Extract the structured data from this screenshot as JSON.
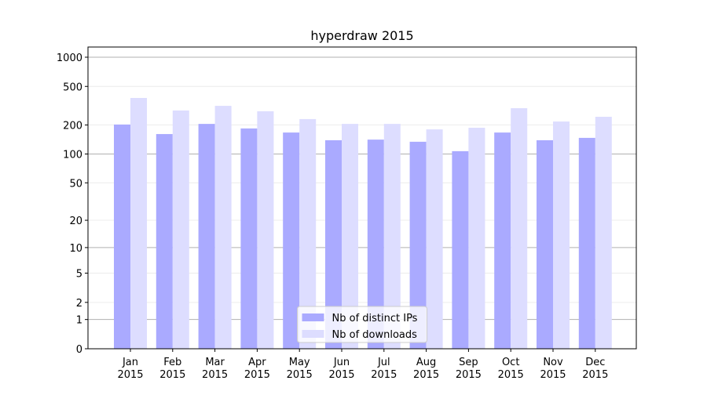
{
  "chart_data": {
    "type": "bar",
    "title": "hyperdraw 2015",
    "categories": [
      "Jan\n2015",
      "Feb\n2015",
      "Mar\n2015",
      "Apr\n2015",
      "May\n2015",
      "Jun\n2015",
      "Jul\n2015",
      "Aug\n2015",
      "Sep\n2015",
      "Oct\n2015",
      "Nov\n2015",
      "Dec\n2015"
    ],
    "series": [
      {
        "name": "Nb of distinct IPs",
        "color": "#aaaaff",
        "values": [
          202,
          161,
          205,
          184,
          167,
          139,
          141,
          134,
          107,
          167,
          139,
          147
        ]
      },
      {
        "name": "Nb of downloads",
        "color": "#ddddff",
        "values": [
          380,
          282,
          315,
          277,
          230,
          205,
          205,
          180,
          187,
          298,
          217,
          243
        ]
      }
    ],
    "yscale": "log1p",
    "ylim": [
      0,
      1273
    ],
    "yticks": [
      0,
      1,
      2,
      5,
      10,
      20,
      50,
      100,
      200,
      500,
      1000
    ],
    "grid": true,
    "legend": "lower center"
  }
}
